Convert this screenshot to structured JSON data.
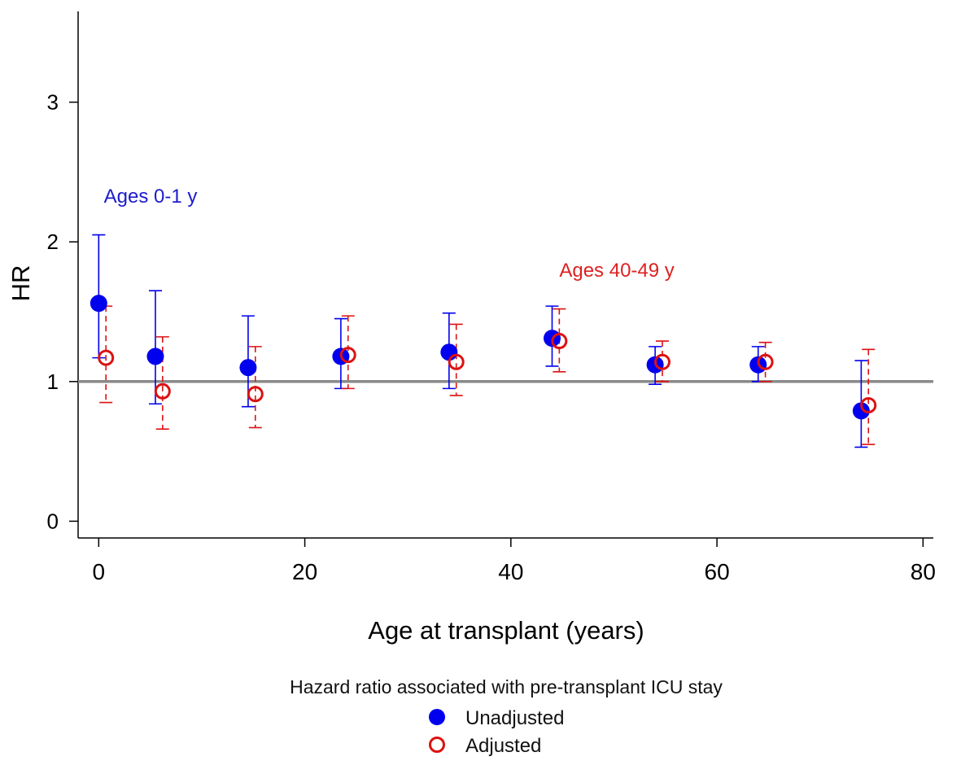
{
  "chart_data": {
    "type": "scatter",
    "xlabel": "Age at transplant (years)",
    "ylabel": "HR",
    "xlim": [
      -2,
      81
    ],
    "ylim": [
      -0.12,
      3.65
    ],
    "xticks": [
      0,
      20,
      40,
      60,
      80
    ],
    "xtick_labels": [
      "0",
      "20",
      "40",
      "60",
      "80"
    ],
    "yticks": [
      0,
      1,
      2,
      3
    ],
    "ytick_labels": [
      "0",
      "1",
      "2",
      "3"
    ],
    "reference_line": 1,
    "grid": false,
    "legend": {
      "title": "Hazard ratio associated with pre-transplant ICU stay",
      "position": "bottom-center",
      "entries": [
        "Unadjusted",
        "Adjusted"
      ]
    },
    "annotations": [
      {
        "text": "Ages 0-1 y",
        "x": 0.5,
        "y": 2.28,
        "color": "#1c1ccc"
      },
      {
        "text": "Ages 40-49 y",
        "x": 44.7,
        "y": 1.75,
        "color": "#dd2222"
      }
    ],
    "series": [
      {
        "name": "Unadjusted",
        "marker": "filled-circle",
        "color": "#0000ee",
        "line_style": "solid",
        "x": [
          0,
          5.5,
          14.5,
          23.5,
          34,
          44,
          54,
          64,
          74
        ],
        "values": [
          1.56,
          1.18,
          1.1,
          1.18,
          1.21,
          1.31,
          1.12,
          1.12,
          0.79
        ],
        "lower": [
          1.17,
          0.84,
          0.82,
          0.95,
          0.95,
          1.11,
          0.98,
          1.0,
          0.53
        ],
        "upper": [
          2.05,
          1.65,
          1.47,
          1.45,
          1.49,
          1.54,
          1.25,
          1.25,
          1.15
        ]
      },
      {
        "name": "Adjusted",
        "marker": "open-circle",
        "color": "#dd1111",
        "line_style": "dashed",
        "x": [
          0.7,
          6.2,
          15.2,
          24.2,
          34.7,
          44.7,
          54.7,
          64.7,
          74.7
        ],
        "values": [
          1.17,
          0.93,
          0.91,
          1.19,
          1.14,
          1.29,
          1.14,
          1.14,
          0.83
        ],
        "lower": [
          0.85,
          0.66,
          0.67,
          0.95,
          0.9,
          1.07,
          1.0,
          1.0,
          0.55
        ],
        "upper": [
          1.54,
          1.32,
          1.25,
          1.47,
          1.41,
          1.52,
          1.29,
          1.28,
          1.23
        ]
      }
    ]
  }
}
